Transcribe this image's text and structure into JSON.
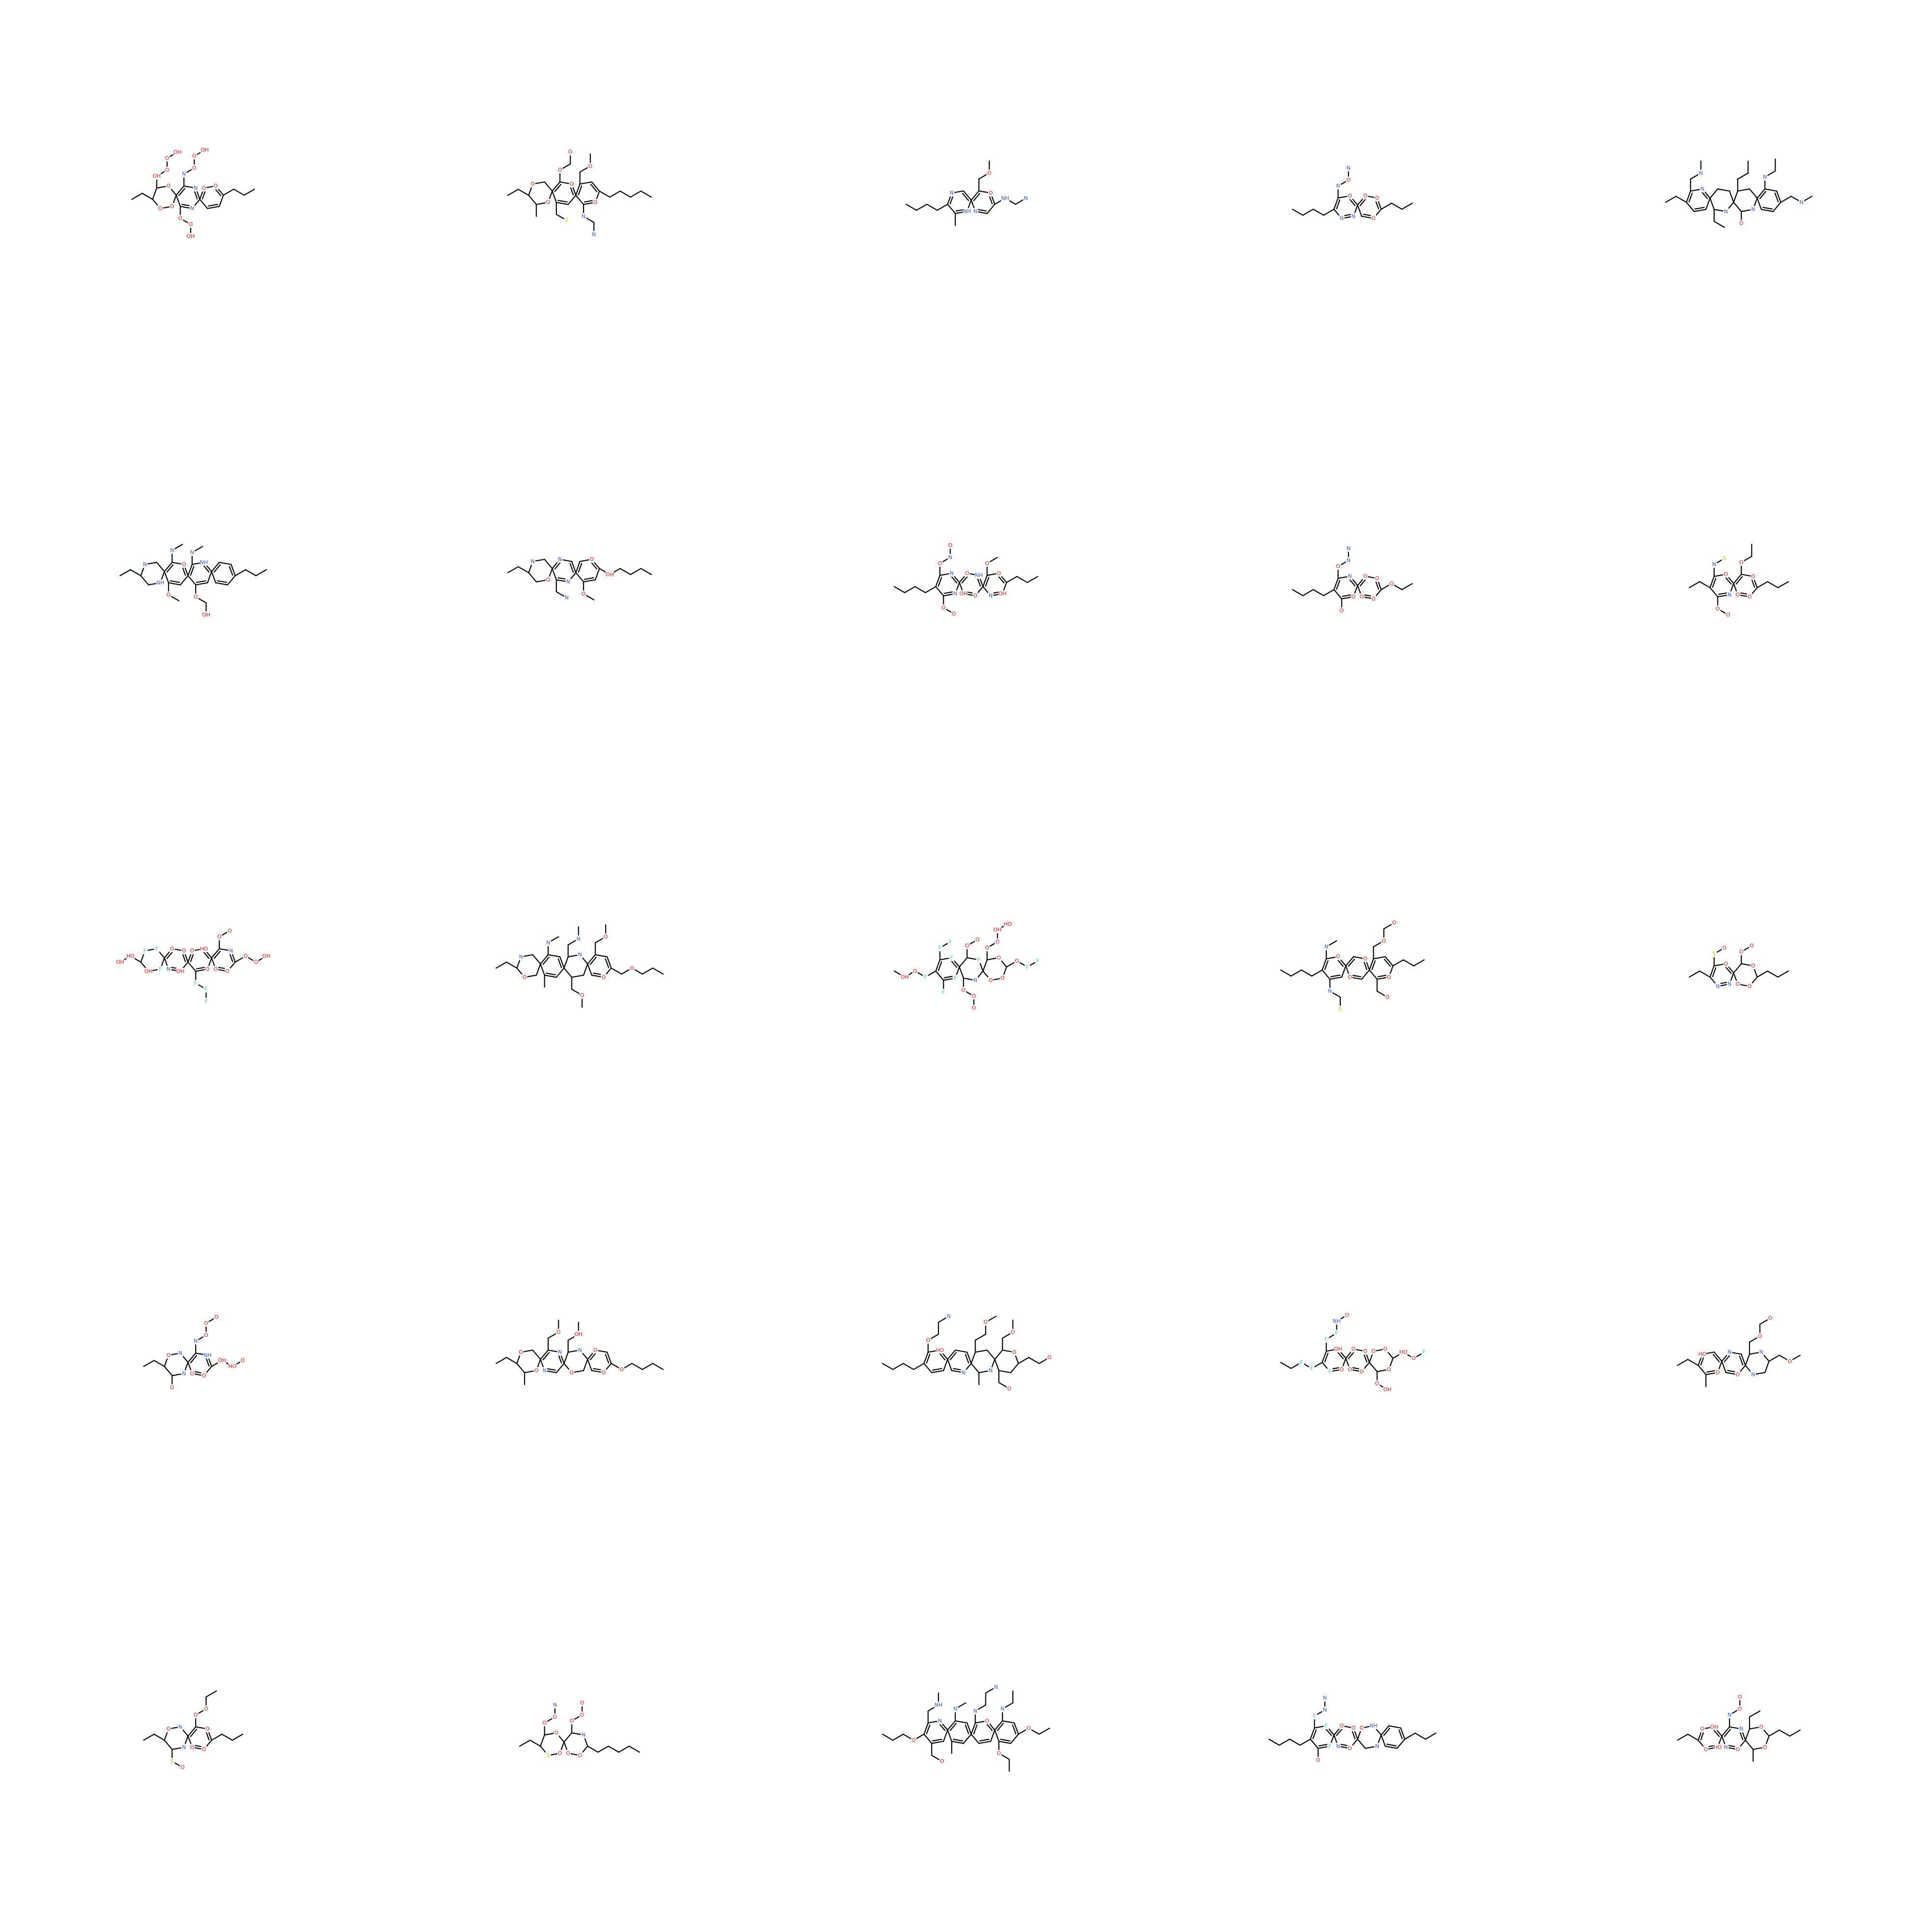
{
  "grid": {
    "rows": 5,
    "cols": 5
  },
  "colors": {
    "carbon_bond": "#000000",
    "O": "#ff0d0d",
    "N": "#3050f8",
    "S": "#c8c800",
    "F": "#33cccc",
    "background": "#ffffff"
  },
  "molecules": [
    {
      "id": 1,
      "atoms": [
        "O",
        "O",
        "O",
        "OH",
        "O",
        "O",
        "OH",
        "N",
        "N",
        "N",
        "O",
        "O",
        "OH",
        "O",
        "O",
        "OH",
        "O",
        "O"
      ]
    },
    {
      "id": 2,
      "atoms": [
        "O",
        "O",
        "O",
        "O",
        "O",
        "S",
        "O",
        "O",
        "N",
        "N"
      ]
    },
    {
      "id": 3,
      "atoms": [
        "N",
        "NH",
        "O",
        "N",
        "O",
        "NH",
        "N"
      ]
    },
    {
      "id": 4,
      "atoms": [
        "O",
        "N",
        "N",
        "N",
        "O",
        "N",
        "O",
        "O",
        "O"
      ]
    },
    {
      "id": 5,
      "atoms": [
        "N",
        "N",
        "N",
        "N",
        "O",
        "N",
        "N"
      ]
    },
    {
      "id": 6,
      "atoms": [
        "N",
        "NH",
        "O",
        "N",
        "O",
        "NH",
        "N",
        "O",
        "OH"
      ]
    },
    {
      "id": 7,
      "atoms": [
        "N",
        "O",
        "N",
        "N",
        "N",
        "O",
        "O",
        "OH"
      ]
    },
    {
      "id": 8,
      "atoms": [
        "N",
        "N",
        "O",
        "N",
        "O",
        "O",
        "O",
        "O",
        "NH",
        "O",
        "OH",
        "O",
        "OH",
        "N",
        "O"
      ]
    },
    {
      "id": 9,
      "atoms": [
        "N",
        "O",
        "O",
        "N",
        "N",
        "O",
        "O",
        "O",
        "O",
        "O",
        "O"
      ]
    },
    {
      "id": 10,
      "atoms": [
        "O",
        "N",
        "N",
        "S",
        "O",
        "O",
        "O",
        "O",
        "O",
        "O"
      ]
    },
    {
      "id": 11,
      "atoms": [
        "F",
        "F",
        "F",
        "OH",
        "O",
        "O",
        "OH",
        "N",
        "O",
        "HO",
        "O",
        "F",
        "F",
        "F",
        "N",
        "O",
        "O",
        "O",
        "O",
        "O",
        "O",
        "OH",
        "HO",
        "O",
        "F",
        "F",
        "F",
        "O",
        "OH"
      ]
    },
    {
      "id": 12,
      "atoms": [
        "N",
        "O",
        "N",
        "N",
        "N",
        "O",
        "O",
        "O",
        "O"
      ]
    },
    {
      "id": 13,
      "atoms": [
        "F",
        "F",
        "F",
        "F",
        "F",
        "F",
        "N",
        "O",
        "O",
        "O",
        "O",
        "O",
        "O",
        "O",
        "O",
        "O",
        "O",
        "OH",
        "HO",
        "O",
        "F",
        "F",
        "F",
        "O",
        "OH"
      ]
    },
    {
      "id": 14,
      "atoms": [
        "O",
        "N",
        "N",
        "S",
        "O",
        "O",
        "O",
        "O",
        "O",
        "O"
      ]
    },
    {
      "id": 15,
      "atoms": [
        "O",
        "N",
        "N",
        "S",
        "O",
        "O",
        "O",
        "O",
        "O",
        "O"
      ]
    },
    {
      "id": 16,
      "atoms": [
        "O",
        "N",
        "N",
        "O",
        "NH",
        "O",
        "O",
        "N",
        "O",
        "O",
        "O",
        "OH",
        "HO",
        "O"
      ]
    },
    {
      "id": 17,
      "atoms": [
        "O",
        "O",
        "N",
        "N",
        "O",
        "N",
        "O",
        "OH",
        "O",
        "O",
        "O"
      ]
    },
    {
      "id": 18,
      "atoms": [
        "HO",
        "O",
        "N",
        "N",
        "N",
        "O",
        "O",
        "O",
        "O",
        "O"
      ]
    },
    {
      "id": 19,
      "atoms": [
        "OH",
        "O",
        "F",
        "F",
        "F",
        "NH",
        "O",
        "O",
        "O",
        "O",
        "O",
        "O",
        "O",
        "O",
        "O",
        "OH",
        "HO",
        "O",
        "F",
        "F",
        "F"
      ]
    },
    {
      "id": 20,
      "atoms": [
        "HO",
        "O",
        "N",
        "O",
        "N",
        "N",
        "O",
        "O",
        "O"
      ]
    },
    {
      "id": 21,
      "atoms": [
        "O",
        "N",
        "N",
        "S",
        "O",
        "O",
        "O",
        "O",
        "O",
        "O"
      ]
    },
    {
      "id": 22,
      "atoms": [
        "O",
        "O",
        "S",
        "O",
        "O",
        "N",
        "N",
        "O",
        "O",
        "O",
        "O",
        "O"
      ]
    },
    {
      "id": 23,
      "atoms": [
        "N",
        "NH",
        "O",
        "N",
        "O",
        "N",
        "N",
        "N",
        "O",
        "O",
        "O"
      ]
    },
    {
      "id": 24,
      "atoms": [
        "F",
        "F",
        "F",
        "N",
        "N",
        "O",
        "O",
        "O",
        "O",
        "N",
        "O",
        "NH",
        "N"
      ]
    },
    {
      "id": 25,
      "atoms": [
        "O",
        "OH",
        "HO",
        "O",
        "N",
        "O",
        "N",
        "N",
        "O",
        "O",
        "O",
        "O"
      ]
    }
  ]
}
